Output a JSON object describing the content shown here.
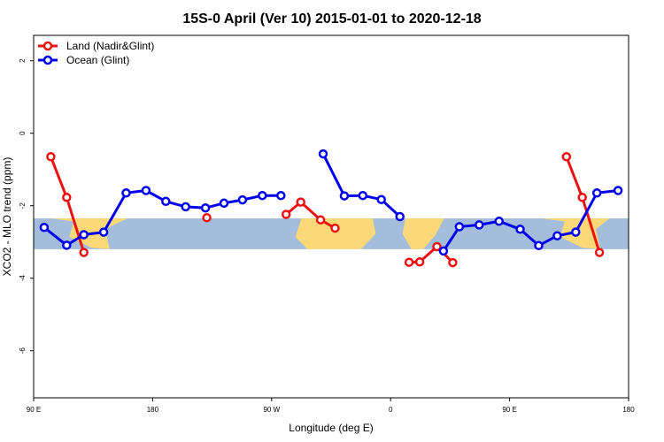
{
  "chart_data": {
    "type": "line",
    "title": "15S-0 April (Ver 10)   2015-01-01 to 2020-12-18",
    "xlabel": "Longitude (deg E)",
    "ylabel": "XCO2 - MLO trend (ppm)",
    "xlim": [
      90,
      540
    ],
    "ylim": [
      -7.3,
      2.7
    ],
    "x_ticks": [
      {
        "value": 90,
        "label": "90 E"
      },
      {
        "value": 180,
        "label": "180"
      },
      {
        "value": 270,
        "label": "90 W"
      },
      {
        "value": 360,
        "label": "0"
      },
      {
        "value": 450,
        "label": "90 E"
      },
      {
        "value": 540,
        "label": "180"
      }
    ],
    "y_ticks": [
      {
        "value": 2,
        "label": "2"
      },
      {
        "value": 0,
        "label": "0"
      },
      {
        "value": -2,
        "label": "-2"
      },
      {
        "value": -4,
        "label": "-4"
      },
      {
        "value": -6,
        "label": "-6"
      }
    ],
    "legend_position": "top-left",
    "background_band": {
      "y_range": [
        -3.2,
        -2.35
      ],
      "ocean_color": "#a5bddc",
      "land_color": "#fcd978"
    },
    "series": [
      {
        "name": "Land (Nadir&Glint)",
        "color": "#ee1111",
        "segments": [
          [
            [
              103,
              -0.65
            ],
            [
              115,
              -1.77
            ],
            [
              128,
              -3.29
            ]
          ],
          [
            [
              221,
              -2.33
            ]
          ],
          [
            [
              281,
              -2.24
            ],
            [
              292,
              -1.9
            ],
            [
              307,
              -2.39
            ],
            [
              318,
              -2.62
            ]
          ],
          [
            [
              374,
              -3.56
            ],
            [
              382,
              -3.55
            ],
            [
              395,
              -3.13
            ],
            [
              407,
              -3.57
            ]
          ],
          [
            [
              493,
              -0.65
            ],
            [
              505,
              -1.77
            ],
            [
              518,
              -3.29
            ]
          ]
        ]
      },
      {
        "name": "Ocean (Glint)",
        "color": "#0000ee",
        "segments": [
          [
            [
              98,
              -2.6
            ],
            [
              115,
              -3.09
            ],
            [
              128,
              -2.8
            ],
            [
              143,
              -2.73
            ],
            [
              160,
              -1.65
            ],
            [
              175,
              -1.58
            ],
            [
              190,
              -1.88
            ],
            [
              205,
              -2.03
            ],
            [
              220,
              -2.06
            ],
            [
              234,
              -1.93
            ],
            [
              248,
              -1.84
            ],
            [
              263,
              -1.72
            ],
            [
              277,
              -1.72
            ]
          ],
          [
            [
              309,
              -0.57
            ],
            [
              325,
              -1.73
            ],
            [
              339,
              -1.72
            ],
            [
              353,
              -1.83
            ],
            [
              367,
              -2.3
            ]
          ],
          [
            [
              400,
              -3.25
            ],
            [
              412,
              -2.58
            ],
            [
              427,
              -2.53
            ],
            [
              442,
              -2.43
            ],
            [
              458,
              -2.65
            ],
            [
              472,
              -3.1
            ],
            [
              486,
              -2.83
            ],
            [
              500,
              -2.73
            ],
            [
              516,
              -1.65
            ],
            [
              532,
              -1.58
            ]
          ]
        ]
      }
    ]
  }
}
